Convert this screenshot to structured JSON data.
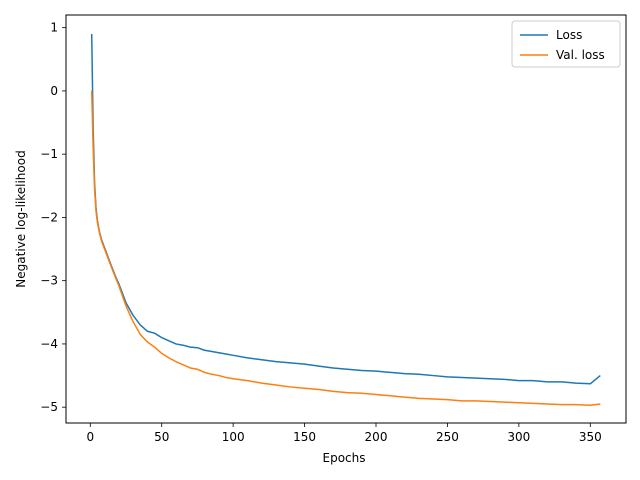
{
  "chart_data": {
    "type": "line",
    "title": "",
    "xlabel": "Epochs",
    "ylabel": "Negative log-likelihood",
    "xlim": [
      -17,
      375
    ],
    "ylim": [
      -5.25,
      1.2
    ],
    "xticks": [
      0,
      50,
      100,
      150,
      200,
      250,
      300,
      350
    ],
    "xtick_labels": [
      "0",
      "50",
      "100",
      "150",
      "200",
      "250",
      "300",
      "350"
    ],
    "yticks": [
      1,
      0,
      -1,
      -2,
      -3,
      -4,
      -5
    ],
    "ytick_labels": [
      "1",
      "0",
      "−1",
      "−2",
      "−3",
      "−4",
      "−5"
    ],
    "grid": false,
    "legend_position": "top-right",
    "series": [
      {
        "name": "Loss",
        "color": "#1f77b4",
        "x": [
          1,
          2,
          3,
          4,
          5,
          6,
          7,
          8,
          10,
          12,
          15,
          18,
          20,
          25,
          30,
          35,
          40,
          45,
          50,
          55,
          60,
          65,
          70,
          75,
          80,
          85,
          90,
          95,
          100,
          110,
          120,
          130,
          140,
          150,
          160,
          170,
          180,
          190,
          200,
          210,
          220,
          230,
          240,
          250,
          260,
          270,
          280,
          290,
          300,
          310,
          320,
          330,
          340,
          350,
          357
        ],
        "y": [
          0.9,
          -0.6,
          -1.45,
          -1.85,
          -2.05,
          -2.18,
          -2.28,
          -2.36,
          -2.48,
          -2.6,
          -2.78,
          -2.95,
          -3.05,
          -3.35,
          -3.55,
          -3.7,
          -3.8,
          -3.83,
          -3.9,
          -3.95,
          -4.0,
          -4.02,
          -4.05,
          -4.06,
          -4.1,
          -4.12,
          -4.14,
          -4.16,
          -4.18,
          -4.22,
          -4.25,
          -4.28,
          -4.3,
          -4.32,
          -4.35,
          -4.38,
          -4.4,
          -4.42,
          -4.43,
          -4.45,
          -4.47,
          -4.48,
          -4.5,
          -4.52,
          -4.53,
          -4.54,
          -4.55,
          -4.56,
          -4.58,
          -4.58,
          -4.6,
          -4.6,
          -4.62,
          -4.63,
          -4.5
        ]
      },
      {
        "name": "Val. loss",
        "color": "#ff7f0e",
        "x": [
          1,
          2,
          3,
          4,
          5,
          6,
          7,
          8,
          10,
          12,
          15,
          18,
          20,
          25,
          30,
          35,
          40,
          45,
          50,
          55,
          60,
          65,
          70,
          75,
          80,
          85,
          90,
          95,
          100,
          110,
          120,
          130,
          140,
          150,
          160,
          170,
          180,
          190,
          200,
          210,
          220,
          230,
          240,
          250,
          260,
          270,
          280,
          290,
          300,
          310,
          320,
          330,
          340,
          350,
          357
        ],
        "y": [
          0.0,
          -0.9,
          -1.55,
          -1.9,
          -2.08,
          -2.2,
          -2.3,
          -2.38,
          -2.5,
          -2.62,
          -2.8,
          -2.97,
          -3.08,
          -3.4,
          -3.65,
          -3.85,
          -3.97,
          -4.05,
          -4.15,
          -4.22,
          -4.28,
          -4.33,
          -4.38,
          -4.4,
          -4.45,
          -4.48,
          -4.5,
          -4.53,
          -4.55,
          -4.58,
          -4.62,
          -4.65,
          -4.68,
          -4.7,
          -4.72,
          -4.75,
          -4.77,
          -4.78,
          -4.8,
          -4.82,
          -4.84,
          -4.86,
          -4.87,
          -4.88,
          -4.9,
          -4.9,
          -4.91,
          -4.92,
          -4.93,
          -4.94,
          -4.95,
          -4.96,
          -4.96,
          -4.97,
          -4.95
        ]
      }
    ]
  }
}
